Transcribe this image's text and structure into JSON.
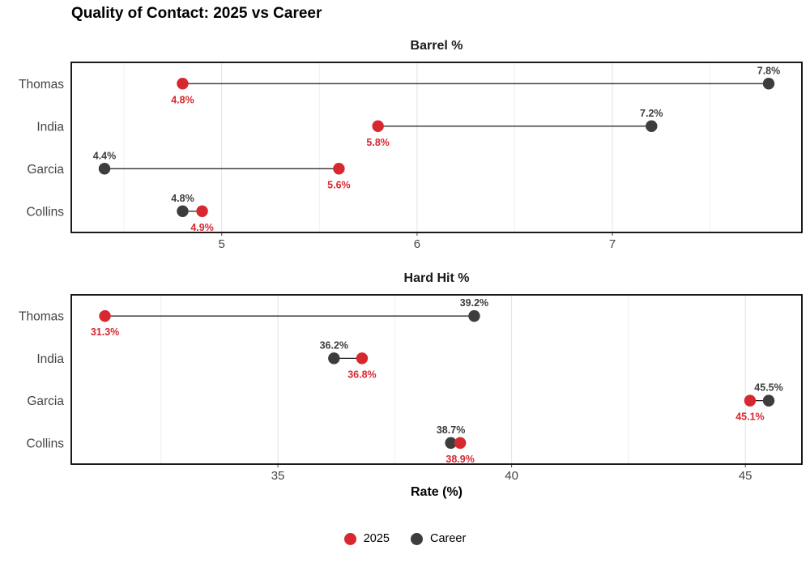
{
  "title": "Quality of Contact: 2025 vs Career",
  "x_axis_title": "Rate (%)",
  "colors": {
    "series_2025": "#d7282f",
    "series_career": "#3d3d3d",
    "grid_major": "#e2e2e2",
    "grid_minor": "#f0f0f0",
    "axis_text": "#444444",
    "panel_border": "#000000",
    "connector": "#1a1a1a",
    "background": "#ffffff"
  },
  "legend": [
    {
      "name": "2025",
      "color": "#d7282f"
    },
    {
      "name": "Career",
      "color": "#3d3d3d"
    }
  ],
  "chart_data": [
    {
      "type": "dumbbell",
      "title": "Barrel %",
      "players": [
        "Thomas",
        "India",
        "Garcia",
        "Collins"
      ],
      "xlim": [
        4.23,
        7.97
      ],
      "ticks": [
        5,
        6,
        7
      ],
      "minor_ticks": [
        4.5,
        5.5,
        6.5,
        7.5
      ],
      "grid": "vertical-only",
      "series": [
        {
          "name": "2025",
          "values": [
            4.8,
            5.8,
            5.6,
            4.9
          ],
          "labels": [
            "4.8%",
            "5.8%",
            "5.6%",
            "4.9%"
          ],
          "label_position": "below"
        },
        {
          "name": "Career",
          "values": [
            7.8,
            7.2,
            4.4,
            4.8
          ],
          "labels": [
            "7.8%",
            "7.2%",
            "4.4%",
            "4.8%"
          ],
          "label_position": "above"
        }
      ]
    },
    {
      "type": "dumbbell",
      "title": "Hard Hit %",
      "players": [
        "Thomas",
        "India",
        "Garcia",
        "Collins"
      ],
      "xlim": [
        30.58,
        46.21
      ],
      "ticks": [
        35,
        40,
        45
      ],
      "minor_ticks": [
        32.5,
        37.5,
        42.5
      ],
      "grid": "vertical-only",
      "series": [
        {
          "name": "2025",
          "values": [
            31.3,
            36.8,
            45.1,
            38.9
          ],
          "labels": [
            "31.3%",
            "36.8%",
            "45.1%",
            "38.9%"
          ],
          "label_position": "below"
        },
        {
          "name": "Career",
          "values": [
            39.2,
            36.2,
            45.5,
            38.7
          ],
          "labels": [
            "39.2%",
            "36.2%",
            "45.5%",
            "38.7%"
          ],
          "label_position": "above"
        }
      ]
    }
  ]
}
